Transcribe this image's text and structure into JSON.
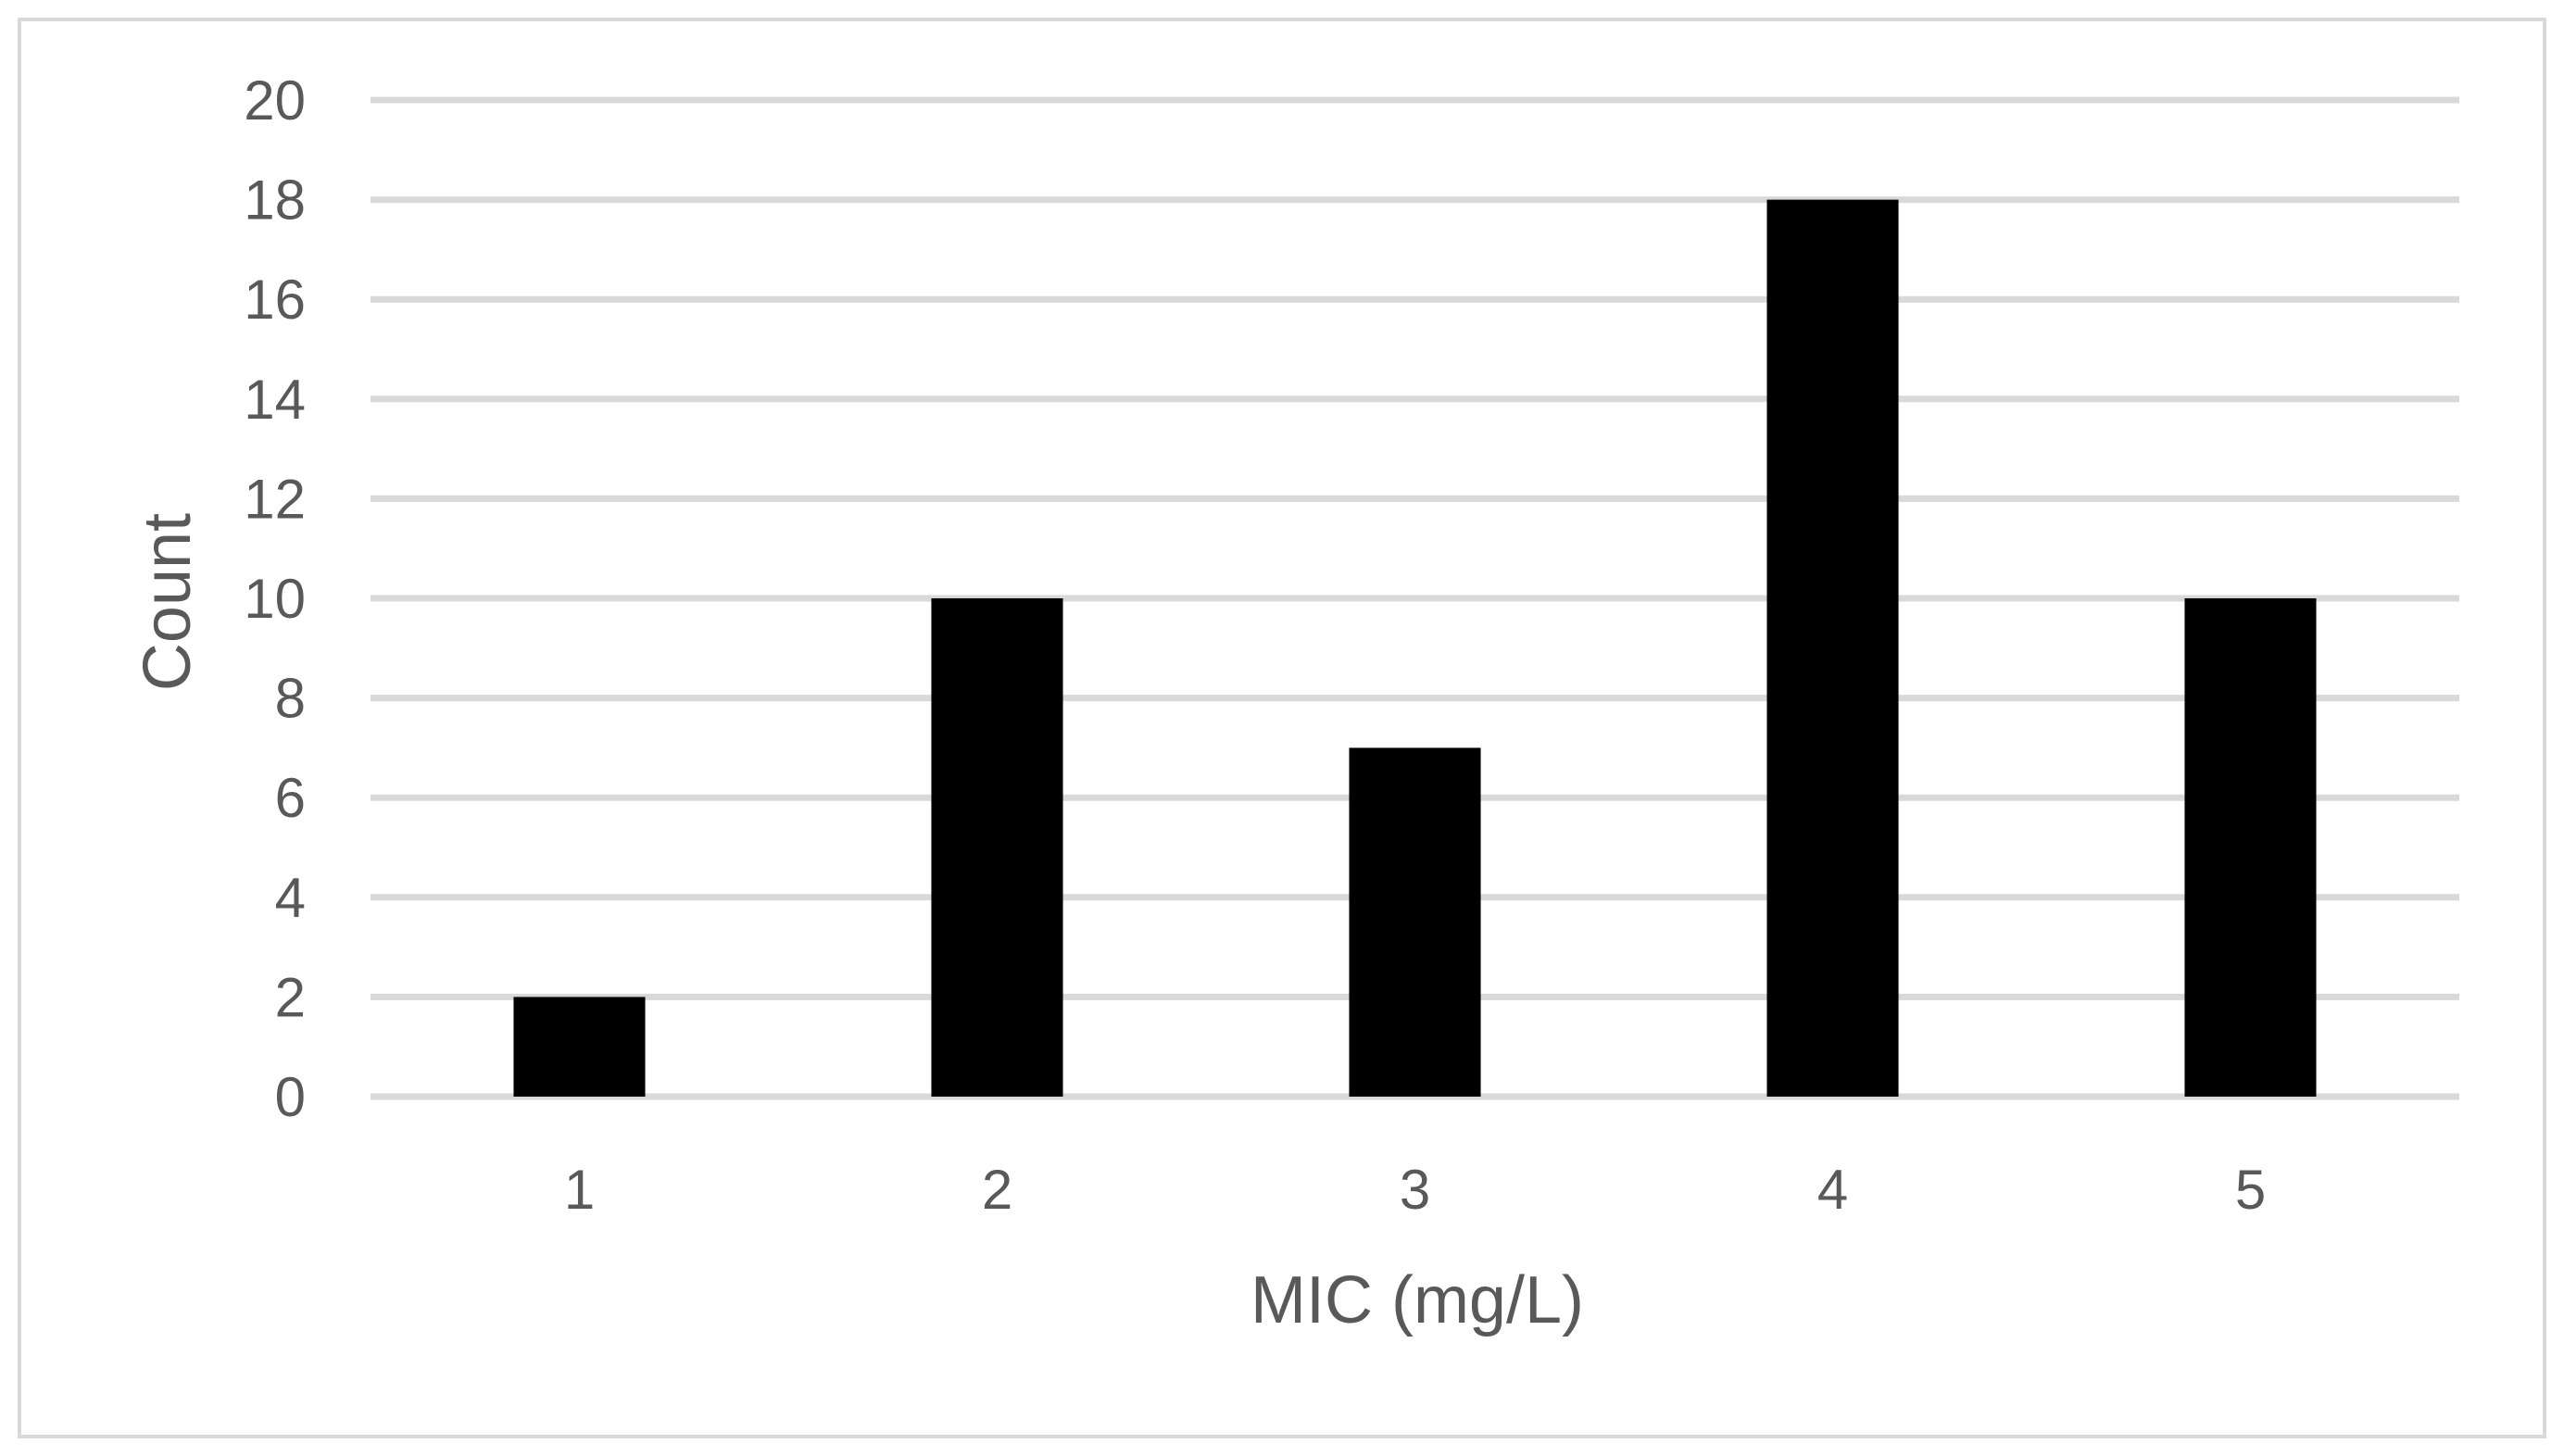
{
  "chart_data": {
    "type": "bar",
    "title": "",
    "xlabel": "MIC (mg/L)",
    "ylabel": "Count",
    "categories": [
      "1",
      "2",
      "3",
      "4",
      "5"
    ],
    "values": [
      2,
      10,
      7,
      18,
      10
    ],
    "ylim": [
      0,
      20
    ],
    "yticks": [
      "0",
      "2",
      "4",
      "6",
      "8",
      "10",
      "12",
      "14",
      "16",
      "18",
      "20"
    ],
    "grid": true,
    "legend": "none",
    "bar_color": "#000000",
    "grid_color": "#d9d9d9",
    "text_color": "#595959",
    "border_color": "#d9d9d9"
  }
}
